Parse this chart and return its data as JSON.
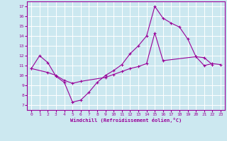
{
  "xlabel": "Windchill (Refroidissement éolien,°C)",
  "xlim": [
    -0.5,
    23.5
  ],
  "ylim": [
    6.5,
    17.5
  ],
  "xticks": [
    0,
    1,
    2,
    3,
    4,
    5,
    6,
    7,
    8,
    9,
    10,
    11,
    12,
    13,
    14,
    15,
    16,
    17,
    18,
    19,
    20,
    21,
    22,
    23
  ],
  "yticks": [
    7,
    8,
    9,
    10,
    11,
    12,
    13,
    14,
    15,
    16,
    17
  ],
  "line_color": "#990099",
  "bg_color": "#cce8f0",
  "grid_color": "#ffffff",
  "line1_x": [
    0,
    1,
    2,
    3,
    4,
    5,
    6,
    7,
    8,
    9,
    10,
    11,
    12,
    13,
    14,
    15,
    16,
    17,
    18,
    19,
    20,
    21,
    22
  ],
  "line1_y": [
    10.7,
    12.0,
    11.3,
    9.9,
    9.3,
    7.3,
    7.5,
    8.3,
    9.3,
    10.0,
    10.5,
    11.1,
    12.2,
    13.0,
    14.0,
    17.0,
    15.8,
    15.3,
    14.9,
    13.7,
    11.9,
    11.8,
    11.1
  ],
  "line2_x": [
    0,
    2,
    3,
    4,
    5,
    6,
    9,
    10,
    11,
    12,
    13,
    14,
    15,
    16,
    20,
    21,
    22,
    23
  ],
  "line2_y": [
    10.7,
    10.3,
    10.0,
    9.5,
    9.2,
    9.4,
    9.8,
    10.1,
    10.4,
    10.7,
    10.9,
    11.2,
    14.3,
    11.5,
    11.9,
    11.0,
    11.2,
    11.1
  ]
}
